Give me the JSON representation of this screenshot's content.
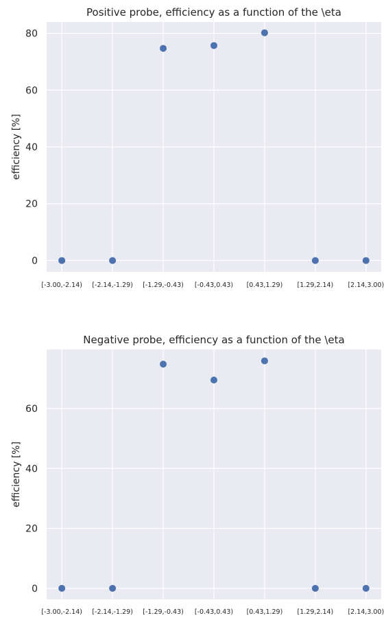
{
  "chart_data": [
    {
      "type": "scatter",
      "title": "Positive probe, efficiency as a function of the \\eta",
      "xlabel": "",
      "ylabel": "efficiency [%]",
      "categories": [
        "[-3.00,-2.14)",
        "[-2.14,-1.29)",
        "[-1.29,-0.43)",
        "[-0.43,0.43)",
        "[0.43,1.29)",
        "[1.29,2.14)",
        "[2.14,3.00)"
      ],
      "values": [
        0,
        0,
        74.7,
        75.7,
        80.2,
        0,
        0
      ],
      "ylim": [
        -4,
        84
      ],
      "yticks": [
        0,
        20,
        40,
        60,
        80
      ],
      "grid": true,
      "color": "#4c72b0",
      "background": "#eaeaf2"
    },
    {
      "type": "scatter",
      "title": "Negative probe, efficiency as a function of the \\eta",
      "xlabel": "",
      "ylabel": "efficiency [%]",
      "categories": [
        "[-3.00,-2.14)",
        "[-2.14,-1.29)",
        "[-1.29,-0.43)",
        "[-0.43,0.43)",
        "[0.43,1.29)",
        "[1.29,2.14)",
        "[2.14,3.00)"
      ],
      "values": [
        0,
        0,
        74.8,
        69.5,
        75.9,
        0,
        0
      ],
      "ylim": [
        -3.7,
        79.7
      ],
      "yticks": [
        0,
        20,
        40,
        60
      ],
      "grid": true,
      "color": "#4c72b0",
      "background": "#eaeaf2"
    }
  ]
}
